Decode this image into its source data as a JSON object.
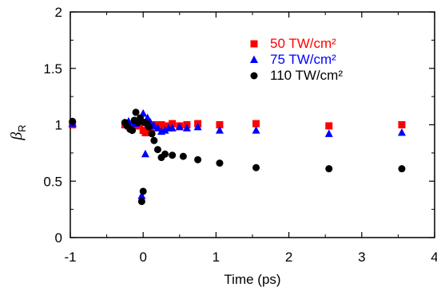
{
  "chart_data": {
    "type": "scatter",
    "title": "",
    "xlabel": "Time (ps)",
    "ylabel": {
      "main": "β",
      "sub": "R"
    },
    "xlim": [
      -1,
      4
    ],
    "ylim": [
      0,
      2
    ],
    "xticks": [
      -1,
      0,
      1,
      2,
      3,
      4
    ],
    "xtick_labels": [
      "-1",
      "0",
      "1",
      "2",
      "3",
      "4"
    ],
    "yticks": [
      0,
      0.5,
      1,
      1.5,
      2
    ],
    "ytick_labels": [
      "0",
      "0.5",
      "1",
      "1.5",
      "2"
    ],
    "grid": false,
    "legend_position": "top-right",
    "series": [
      {
        "name": "50 TW/cm²",
        "marker": "square",
        "color": "#ff0000",
        "points": [
          [
            -0.97,
            1.0
          ],
          [
            -0.25,
            1.0
          ],
          [
            -0.2,
            0.99
          ],
          [
            -0.15,
            0.97
          ],
          [
            -0.1,
            0.99
          ],
          [
            -0.05,
            1.01
          ],
          [
            0.0,
            0.95
          ],
          [
            0.03,
            0.93
          ],
          [
            0.06,
            0.95
          ],
          [
            0.1,
            0.97
          ],
          [
            0.15,
            1.0
          ],
          [
            0.2,
            0.99
          ],
          [
            0.25,
            1.0
          ],
          [
            0.3,
            0.98
          ],
          [
            0.35,
            0.99
          ],
          [
            0.4,
            1.01
          ],
          [
            0.5,
            0.99
          ],
          [
            0.6,
            1.0
          ],
          [
            0.75,
            1.01
          ],
          [
            1.05,
            1.0
          ],
          [
            1.55,
            1.01
          ],
          [
            2.55,
            0.99
          ],
          [
            3.55,
            1.0
          ]
        ]
      },
      {
        "name": "75 TW/cm²",
        "marker": "triangle",
        "color": "#0000ff",
        "points": [
          [
            -0.97,
            1.01
          ],
          [
            -0.2,
            1.03
          ],
          [
            -0.15,
            1.02
          ],
          [
            -0.1,
            1.01
          ],
          [
            -0.05,
            1.03
          ],
          [
            -0.02,
            0.37
          ],
          [
            0.0,
            1.1
          ],
          [
            0.03,
            0.74
          ],
          [
            0.06,
            1.06
          ],
          [
            0.1,
            1.02
          ],
          [
            0.15,
            0.99
          ],
          [
            0.2,
            0.97
          ],
          [
            0.25,
            0.94
          ],
          [
            0.3,
            0.95
          ],
          [
            0.35,
            0.97
          ],
          [
            0.4,
            0.97
          ],
          [
            0.5,
            0.98
          ],
          [
            0.6,
            0.97
          ],
          [
            0.75,
            0.98
          ],
          [
            1.05,
            0.95
          ],
          [
            1.55,
            0.95
          ],
          [
            2.55,
            0.92
          ],
          [
            3.55,
            0.93
          ]
        ]
      },
      {
        "name": "110 TW/cm²",
        "marker": "circle",
        "color": "#000000",
        "points": [
          [
            -0.97,
            1.03
          ],
          [
            -0.25,
            1.02
          ],
          [
            -0.22,
            0.99
          ],
          [
            -0.18,
            0.96
          ],
          [
            -0.15,
            0.95
          ],
          [
            -0.12,
            1.04
          ],
          [
            -0.1,
            1.11
          ],
          [
            -0.07,
            1.02
          ],
          [
            -0.04,
            1.06
          ],
          [
            -0.02,
            0.32
          ],
          [
            0.0,
            0.41
          ],
          [
            0.02,
            1.02
          ],
          [
            0.05,
            1.01
          ],
          [
            0.08,
            0.98
          ],
          [
            0.12,
            0.92
          ],
          [
            0.15,
            0.86
          ],
          [
            0.2,
            0.78
          ],
          [
            0.25,
            0.71
          ],
          [
            0.3,
            0.74
          ],
          [
            0.4,
            0.73
          ],
          [
            0.55,
            0.72
          ],
          [
            0.75,
            0.69
          ],
          [
            1.05,
            0.66
          ],
          [
            1.55,
            0.62
          ],
          [
            2.55,
            0.61
          ],
          [
            3.55,
            0.61
          ]
        ]
      }
    ]
  }
}
